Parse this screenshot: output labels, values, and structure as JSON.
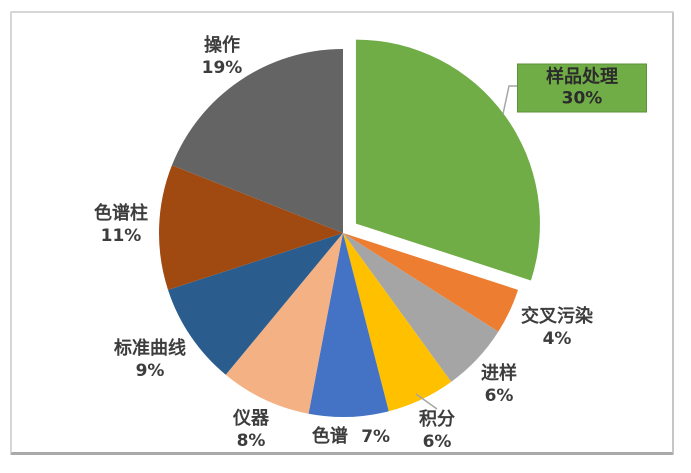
{
  "chart_data": {
    "type": "pie",
    "title": "",
    "start_angle_deg": 0,
    "direction": "clockwise",
    "units": "percent",
    "exploded_slice": "样品处理",
    "label_position": "outside",
    "slices": [
      {
        "label": "样品处理",
        "value": 30,
        "pct_label": "30%",
        "color": "#70ad47",
        "exploded": true,
        "callout_box": true
      },
      {
        "label": "交叉污染",
        "value": 4,
        "pct_label": "4%",
        "color": "#ed7d31"
      },
      {
        "label": "进样",
        "value": 6,
        "pct_label": "6%",
        "color": "#a5a5a5"
      },
      {
        "label": "积分",
        "value": 6,
        "pct_label": "6%",
        "color": "#ffc000",
        "leader_line": true
      },
      {
        "label": "色谱",
        "value": 7,
        "pct_label": "7%",
        "color": "#4472c4",
        "label_inline": true
      },
      {
        "label": "仪器",
        "value": 8,
        "pct_label": "8%",
        "color": "#f4b183"
      },
      {
        "label": "标准曲线",
        "value": 9,
        "pct_label": "9%",
        "color": "#2a5d8e"
      },
      {
        "label": "色谱柱",
        "value": 11,
        "pct_label": "11%",
        "color": "#a04a11"
      },
      {
        "label": "操作",
        "value": 19,
        "pct_label": "19%",
        "color": "#646464"
      }
    ],
    "colors": {
      "label_text": "#3d3d3d",
      "leader_line": "#a6a6a6",
      "callout_box_fill": "#70ad47",
      "frame_border": "#d6d6d6",
      "background": "#ffffff"
    }
  }
}
